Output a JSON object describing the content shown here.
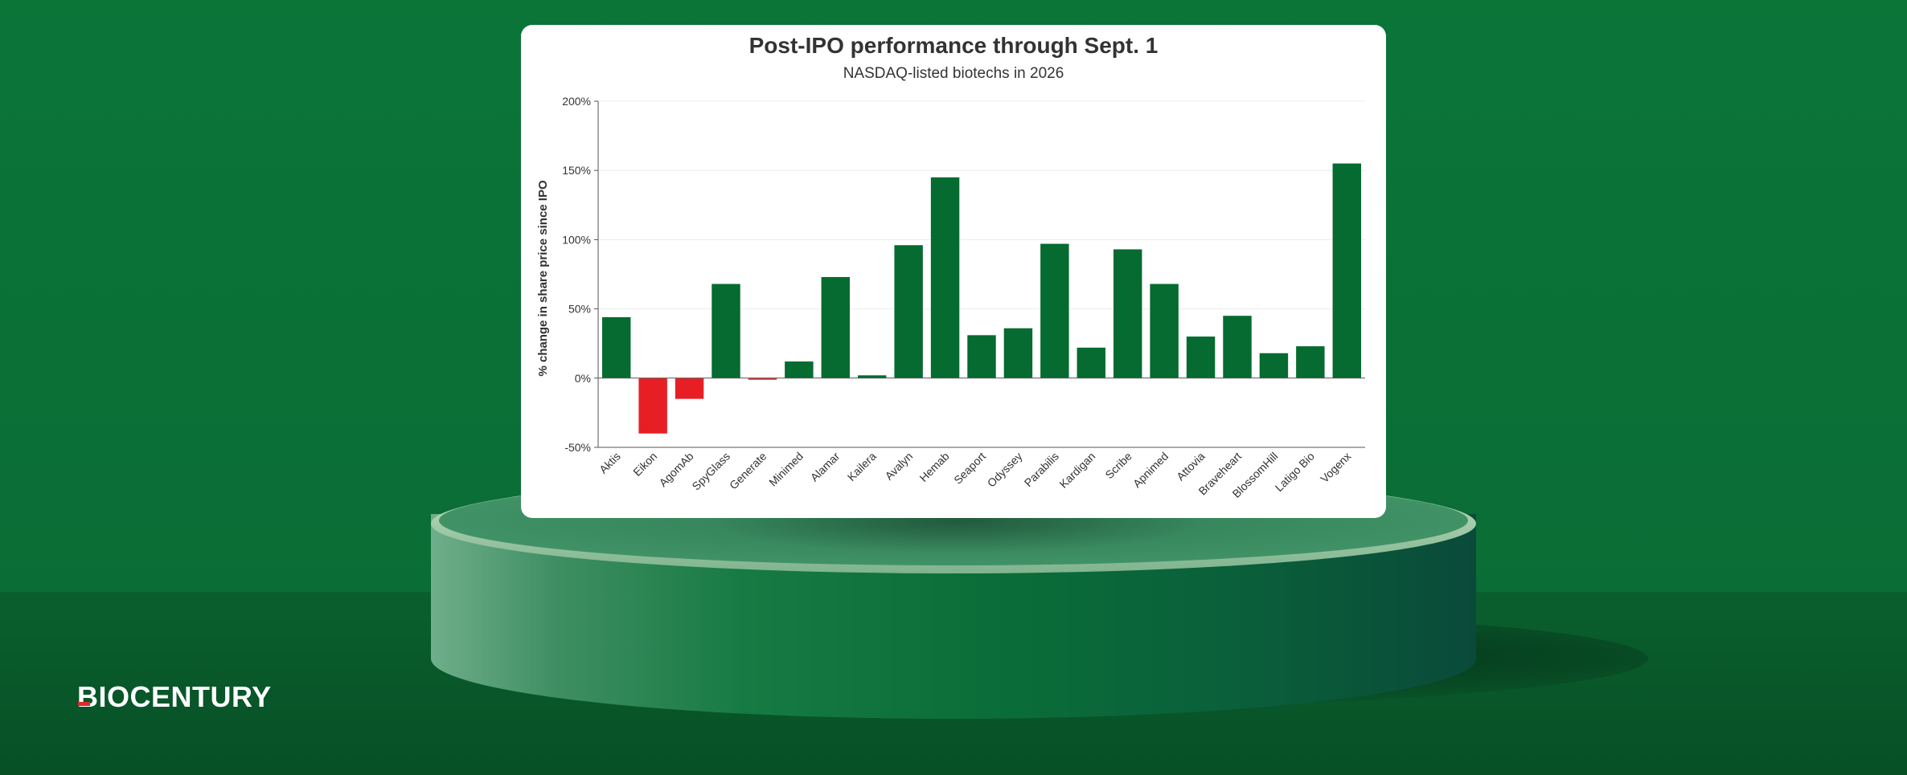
{
  "brand": {
    "logo_text": "BIOCENTURY"
  },
  "colors": {
    "positive": "#056b30",
    "negative": "#e81e25",
    "background": "#0a6b35"
  },
  "chart_data": {
    "type": "bar",
    "title": "Post-IPO performance through Sept. 1",
    "subtitle": "NASDAQ-listed biotechs in 2026",
    "ylabel": "% change in share price since IPO",
    "xlabel": "",
    "ylim": [
      -50,
      200
    ],
    "yticks": [
      -50,
      0,
      50,
      100,
      150,
      200
    ],
    "ytick_labels": [
      "-50%",
      "0%",
      "50%",
      "100%",
      "150%",
      "200%"
    ],
    "grid": true,
    "categories": [
      "Aktis",
      "Eikon",
      "AgomAb",
      "SpyGlass",
      "Generate",
      "Minimed",
      "Alamar",
      "Kailera",
      "Avalyn",
      "Hemab",
      "Seaport",
      "Odyssey",
      "Parabilis",
      "Kardigan",
      "Scribe",
      "Apnimed",
      "Attovia",
      "Braveheart",
      "BlossomHill",
      "Latigo Bio",
      "Vogenx"
    ],
    "values": [
      44,
      -40,
      -15,
      68,
      -1,
      12,
      73,
      2,
      96,
      145,
      31,
      36,
      97,
      22,
      93,
      68,
      30,
      45,
      18,
      23,
      155
    ]
  }
}
